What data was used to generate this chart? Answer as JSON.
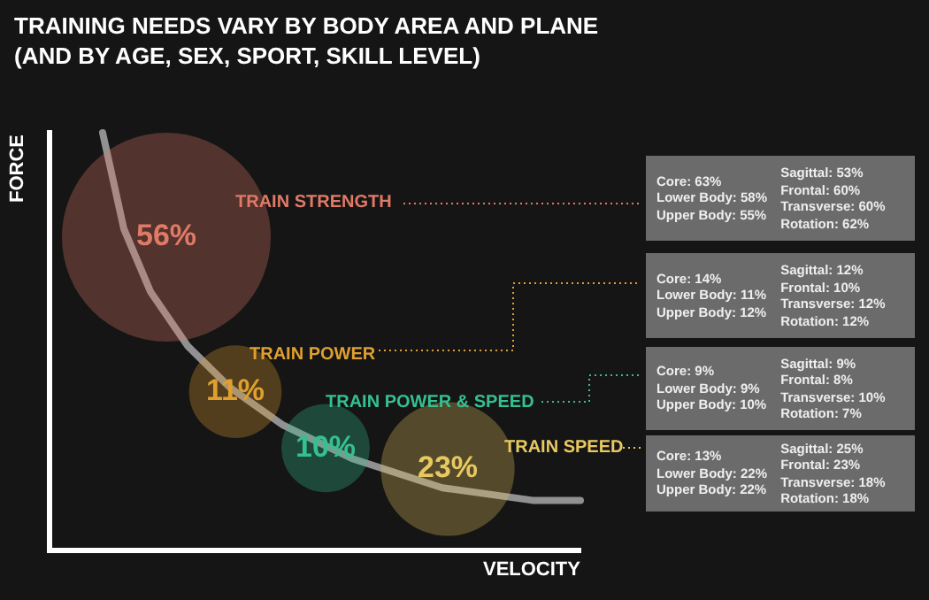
{
  "chart_data": {
    "type": "other",
    "title": "TRAINING NEEDS VARY BY BODY AREA AND PLANE",
    "subtitle": "(AND BY AGE, SEX, SPORT, SKILL LEVEL)",
    "xlabel": "VELOCITY",
    "ylabel": "FORCE",
    "categories": [
      "TRAIN STRENGTH",
      "TRAIN POWER",
      "TRAIN POWER & SPEED",
      "TRAIN SPEED"
    ],
    "values": [
      56,
      11,
      10,
      23
    ],
    "value_labels": [
      "56%",
      "11%",
      "10%",
      "23%"
    ],
    "colors": [
      "#e07a66",
      "#e0a030",
      "#35c090",
      "#e8c860"
    ],
    "annotations": [
      "Core: 63%\nLower Body: 58%\nUpper Body: 55%\n\nSagittal: 53%\nFrontal: 60%\nTransverse: 60%\nRotation: 62%",
      "Core: 14%\nLower Body: 11%\nUpper Body: 12%\n\nSagittal: 12%\nFrontal: 10%\nTransverse: 12%\nRotation: 12%",
      "Core: 9%\nLower Body: 9%\nUpper Body: 10%\n\nSagittal: 9%\nFrontal: 8%\nTransverse: 10%\nRotation: 7%",
      "Core: 13%\nLower Body: 22%\nUpper Body: 22%\n\nSagittal: 25%\nFrontal: 23%\nTransverse: 18%\nRotation: 18%"
    ]
  }
}
